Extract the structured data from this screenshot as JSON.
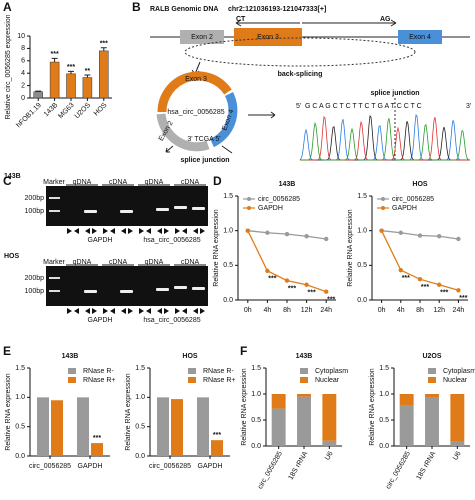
{
  "panels": [
    "A",
    "B",
    "C",
    "D",
    "E",
    "F"
  ],
  "diagram": {
    "title": "RALB Genomic DNA",
    "locus": "chr2:121036193-121047333[+]",
    "ct": "CT",
    "ag": "AG",
    "exons": [
      "Exon 2",
      "Exon 3",
      "Exon 4"
    ],
    "back_splicing": "back-splicing",
    "circ": "hsa_circ_0056285",
    "junction_seq": "3' TCGA 5'",
    "junction_label": "splice junction",
    "chromatogram_label": "splice junction",
    "five_prime": "5'",
    "three_prime": "3'",
    "sequence": "G C A G C T C T T C T G A T C C T C"
  },
  "gels": [
    {
      "title": "143B",
      "marker": "Marker",
      "lanes": [
        "gDNA",
        "cDNA",
        "gDNA",
        "cDNA"
      ],
      "sizes": [
        "200bp",
        "100bp"
      ],
      "genes": [
        "GAPDH",
        "hsa_circ_0056285"
      ]
    },
    {
      "title": "HOS",
      "marker": "Marker",
      "lanes": [
        "gDNA",
        "cDNA",
        "gDNA",
        "cDNA"
      ],
      "sizes": [
        "200bp",
        "100bp"
      ],
      "genes": [
        "GAPDH",
        "hsa_circ_0056285"
      ]
    }
  ],
  "chart_data": [
    {
      "type": "bar",
      "ylabel": "Relative circ_0056285 expression",
      "categories": [
        "hFOB1.19",
        "143B",
        "MG63",
        "U2OS",
        "HOS"
      ],
      "values": [
        1.0,
        5.8,
        3.9,
        3.3,
        7.6
      ],
      "errors": [
        0.1,
        0.6,
        0.4,
        0.4,
        0.5
      ],
      "colors": [
        "#8c8c8c",
        "#e07b1a",
        "#e07b1a",
        "#e07b1a",
        "#e07b1a"
      ],
      "annotations": [
        null,
        "***",
        "***",
        "**",
        "***"
      ],
      "ylim": [
        0,
        10
      ],
      "yticks": [
        0,
        2,
        4,
        6,
        8,
        10
      ]
    },
    {
      "type": "line",
      "title": "143B",
      "ylabel": "Relative RNA expression",
      "categories": [
        "0h",
        "4h",
        "8h",
        "12h",
        "24h"
      ],
      "series": [
        {
          "name": "circ_0056285",
          "color": "#9a9a9a",
          "values": [
            1.0,
            0.97,
            0.95,
            0.92,
            0.88
          ]
        },
        {
          "name": "GAPDH",
          "color": "#e07b1a",
          "values": [
            1.0,
            0.42,
            0.28,
            0.22,
            0.12
          ],
          "annotations": [
            null,
            "***",
            "***",
            "***",
            "***"
          ]
        }
      ],
      "ylim": [
        0,
        1.5
      ],
      "yticks": [
        {
          "value": 0,
          "label": "0.0"
        },
        0.5,
        {
          "value": 1,
          "label": "1.0"
        },
        1.5
      ],
      "legend": "upper left"
    },
    {
      "type": "line",
      "title": "HOS",
      "ylabel": "Relative RNA expression",
      "categories": [
        "0h",
        "4h",
        "8h",
        "12h",
        "24h"
      ],
      "series": [
        {
          "name": "circ_0056285",
          "color": "#9a9a9a",
          "values": [
            1.0,
            0.97,
            0.93,
            0.92,
            0.88
          ]
        },
        {
          "name": "GAPDH",
          "color": "#e07b1a",
          "values": [
            1.0,
            0.43,
            0.3,
            0.22,
            0.14
          ],
          "annotations": [
            null,
            "***",
            "***",
            "***",
            "***"
          ]
        }
      ],
      "ylim": [
        0,
        1.5
      ],
      "yticks": [
        {
          "value": 0,
          "label": "0.0"
        },
        0.5,
        {
          "value": 1,
          "label": "1.0"
        },
        1.5
      ],
      "legend": "upper left"
    },
    {
      "type": "grouped-bar",
      "title": "143B",
      "ylabel": "Relative RNA expression",
      "categories": [
        "circ_0056285",
        "GAPDH"
      ],
      "series": [
        {
          "name": "RNase R-",
          "color": "#9a9a9a",
          "values": [
            1.0,
            1.0
          ]
        },
        {
          "name": "RNase R+",
          "color": "#e07b1a",
          "values": [
            0.95,
            0.22
          ],
          "annotations": [
            null,
            "***"
          ]
        }
      ],
      "ylim": [
        0,
        1.5
      ],
      "yticks": [
        {
          "value": 0,
          "label": "0.0"
        },
        0.5,
        {
          "value": 1,
          "label": "1.0"
        },
        1.5
      ],
      "legend": "upper right"
    },
    {
      "type": "grouped-bar",
      "title": "HOS",
      "ylabel": "Relative RNA expression",
      "categories": [
        "circ_0056285",
        "GAPDH"
      ],
      "series": [
        {
          "name": "RNase R-",
          "color": "#9a9a9a",
          "values": [
            1.0,
            1.0
          ]
        },
        {
          "name": "RNase R+",
          "color": "#e07b1a",
          "values": [
            0.97,
            0.27
          ],
          "annotations": [
            null,
            "***"
          ]
        }
      ],
      "ylim": [
        0,
        1.5
      ],
      "yticks": [
        {
          "value": 0,
          "label": "0.0"
        },
        0.5,
        {
          "value": 1,
          "label": "1.0"
        },
        1.5
      ],
      "legend": "upper right"
    },
    {
      "type": "stacked-bar",
      "title": "143B",
      "ylabel": "Relative RNA expression",
      "categories": [
        "circ_0056285",
        "18S rRNA",
        "U6"
      ],
      "series": [
        {
          "name": "Cytoplasm",
          "color": "#9a9a9a",
          "values": [
            0.72,
            0.95,
            0.1
          ]
        },
        {
          "name": "Nuclear",
          "color": "#e07b1a",
          "values": [
            0.28,
            0.05,
            0.9
          ]
        }
      ],
      "ylim": [
        0,
        1.5
      ],
      "yticks": [
        {
          "value": 0,
          "label": "0.0"
        },
        0.5,
        {
          "value": 1,
          "label": "1.0"
        },
        1.5
      ],
      "legend": "upper right"
    },
    {
      "type": "stacked-bar",
      "title": "U2OS",
      "ylabel": "Relative RNA expression",
      "categories": [
        "circ_0056285",
        "18S rRNA",
        "U6"
      ],
      "series": [
        {
          "name": "Cytoplasm",
          "color": "#9a9a9a",
          "values": [
            0.78,
            0.93,
            0.08
          ]
        },
        {
          "name": "Nuclear",
          "color": "#e07b1a",
          "values": [
            0.22,
            0.07,
            0.92
          ]
        }
      ],
      "ylim": [
        0,
        1.5
      ],
      "yticks": [
        {
          "value": 0,
          "label": "0.0"
        },
        0.5,
        {
          "value": 1,
          "label": "1.0"
        },
        1.5
      ],
      "legend": "upper right"
    }
  ]
}
